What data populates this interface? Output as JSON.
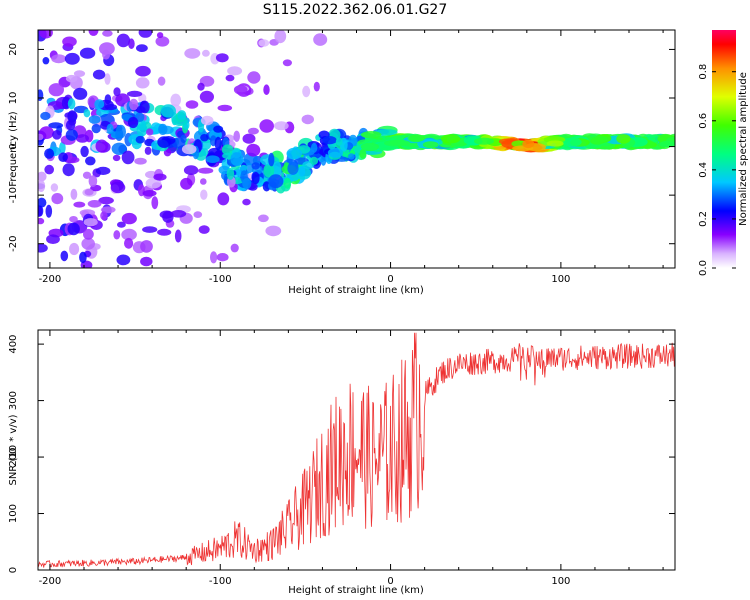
{
  "figure_title": "S115.2022.362.06.01.G27",
  "colors": {
    "snr_line": "#ee3333",
    "axes": "#000000",
    "background": "#ffffff"
  },
  "chart_data": [
    {
      "type": "heatmap",
      "title": "",
      "xlabel": "Height of straight line (km)",
      "ylabel": "Frequency (Hz)",
      "xlim": [
        -207,
        167
      ],
      "ylim": [
        -25,
        24
      ],
      "xticks": [
        -200,
        -100,
        0,
        100
      ],
      "yticks": [
        -20,
        -10,
        0,
        10,
        20
      ],
      "colorbar": {
        "label": "Normalized spectral amplitude",
        "ticks": [
          0.0,
          0.2,
          0.4,
          0.6,
          0.8
        ],
        "tick_labels": [
          "0.0",
          "0.2",
          "0.4",
          "0.6",
          "0.8"
        ],
        "range": [
          0,
          0.97
        ]
      },
      "ridge": [
        {
          "x": -150,
          "freq": 4,
          "amp": 0.35
        },
        {
          "x": -120,
          "freq": 3,
          "amp": 0.45
        },
        {
          "x": -100,
          "freq": 0,
          "amp": 0.3
        },
        {
          "x": -95,
          "freq": -4,
          "amp": 0.45
        },
        {
          "x": -80,
          "freq": -6,
          "amp": 0.3
        },
        {
          "x": -60,
          "freq": -5,
          "amp": 0.55
        },
        {
          "x": -40,
          "freq": 0,
          "amp": 0.35
        },
        {
          "x": -20,
          "freq": 0,
          "amp": 0.5
        },
        {
          "x": 0,
          "freq": 1,
          "amp": 0.55
        },
        {
          "x": 20,
          "freq": 1,
          "amp": 0.6
        },
        {
          "x": 50,
          "freq": 1,
          "amp": 0.55
        },
        {
          "x": 70,
          "freq": 0.5,
          "amp": 0.9
        },
        {
          "x": 80,
          "freq": 0,
          "amp": 0.95
        },
        {
          "x": 100,
          "freq": 1,
          "amp": 0.55
        },
        {
          "x": 130,
          "freq": 1,
          "amp": 0.6
        },
        {
          "x": 167,
          "freq": 1,
          "amp": 0.55
        }
      ]
    },
    {
      "type": "line",
      "title": "",
      "xlabel": "Height of straight line (km)",
      "ylabel": "SNR (10 * v/v)",
      "xlim": [
        -207,
        167
      ],
      "ylim": [
        0,
        425
      ],
      "xticks": [
        -200,
        -100,
        0,
        100
      ],
      "yticks": [
        0,
        100,
        200,
        300,
        400
      ],
      "series": [
        {
          "name": "SNR",
          "x": [
            -207,
            -180,
            -150,
            -120,
            -100,
            -90,
            -80,
            -70,
            -60,
            -50,
            -40,
            -30,
            -20,
            -10,
            0,
            10,
            20,
            30,
            40,
            60,
            80,
            100,
            130,
            167
          ],
          "values": [
            10,
            12,
            15,
            22,
            38,
            55,
            35,
            45,
            75,
            110,
            160,
            200,
            220,
            190,
            210,
            240,
            310,
            350,
            365,
            370,
            375,
            375,
            378,
            380
          ]
        }
      ]
    }
  ]
}
